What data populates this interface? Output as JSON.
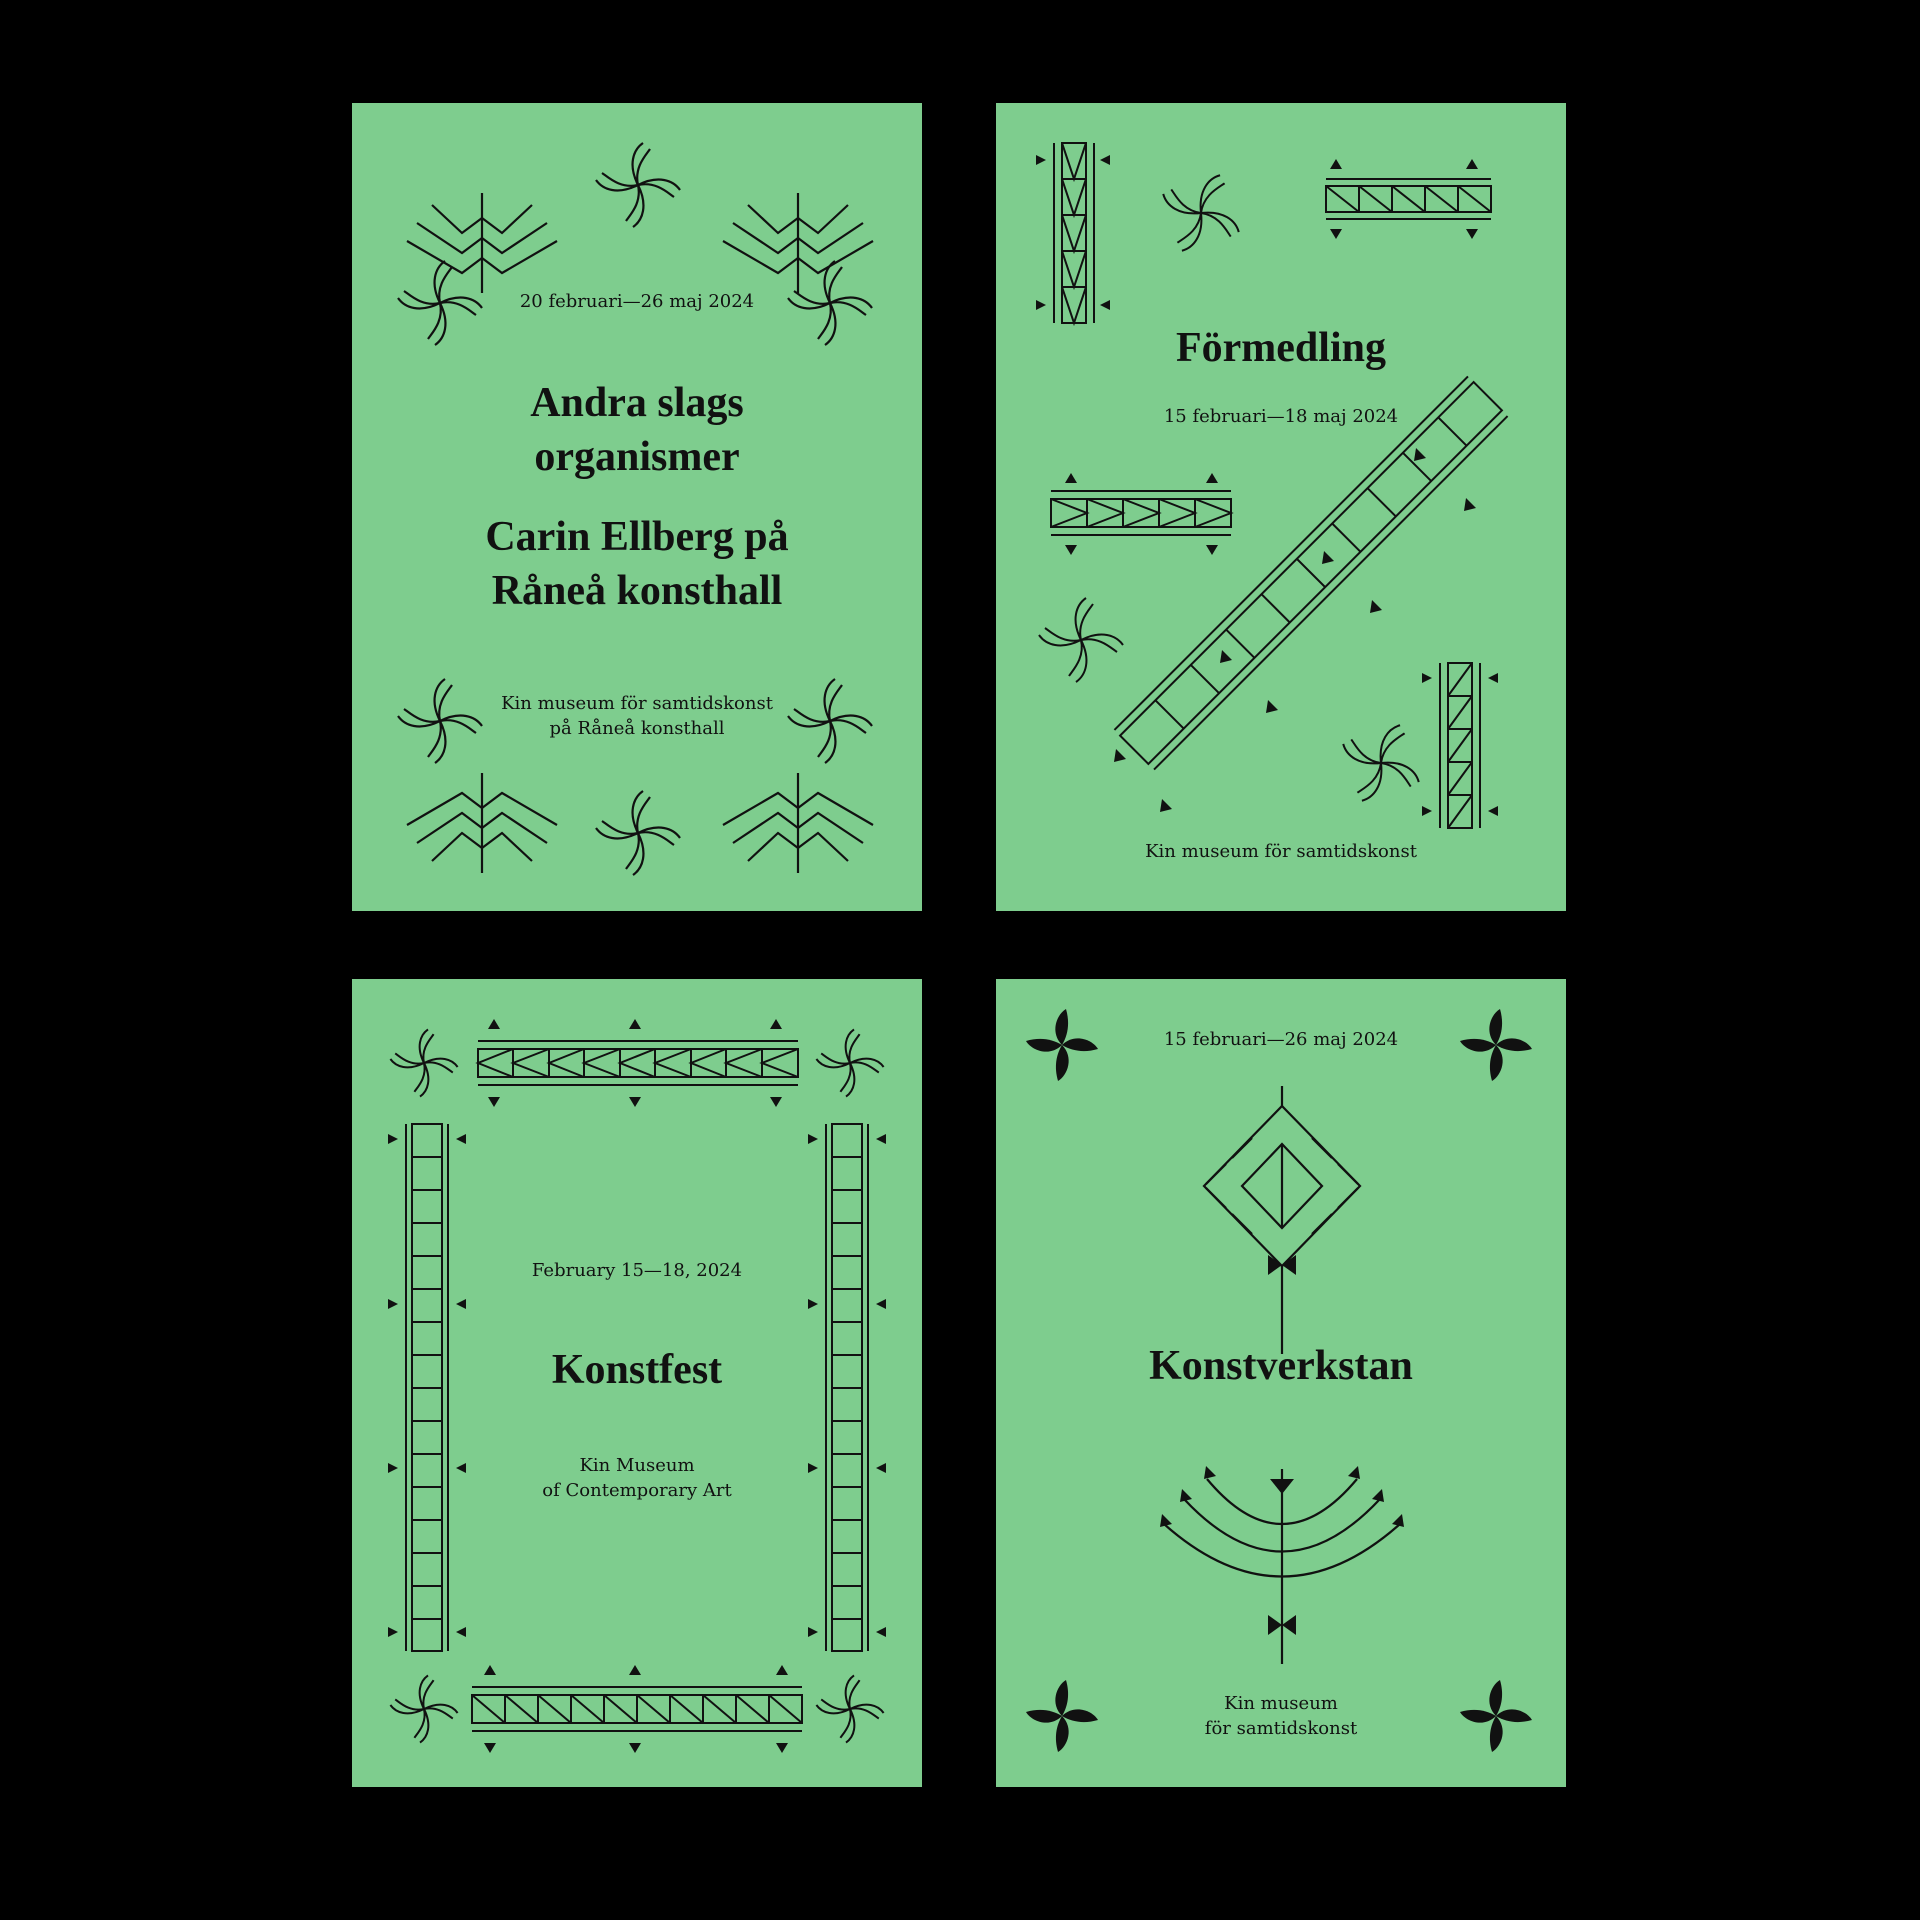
{
  "colors": {
    "background": "#000000",
    "poster": "#7ecd8e",
    "ink": "#111111"
  },
  "posters": [
    {
      "date": "20 februari—26 maj 2024",
      "title_lines": [
        "Andra slags",
        "organismer"
      ],
      "subtitle_lines": [
        "Carin Ellberg på",
        "Råneå konsthall"
      ],
      "venue_lines": [
        "Kin museum för samtidskonst",
        "på Råneå konsthall"
      ]
    },
    {
      "title": "Förmedling",
      "date": "15 februari—18 maj 2024",
      "venue": "Kin museum för samtidskonst"
    },
    {
      "date": "February 15—18, 2024",
      "title": "Konstfest",
      "venue_lines": [
        "Kin Museum",
        "of Contemporary Art"
      ]
    },
    {
      "date": "15 februari—26 maj 2024",
      "title": "Konstverkstan",
      "venue_lines": [
        "Kin museum",
        "för samtidskonst"
      ]
    }
  ],
  "icons": [
    "branch-icon",
    "four-petal-flower-icon",
    "border-band-icon",
    "diamond-tree-icon",
    "arc-tree-icon"
  ]
}
